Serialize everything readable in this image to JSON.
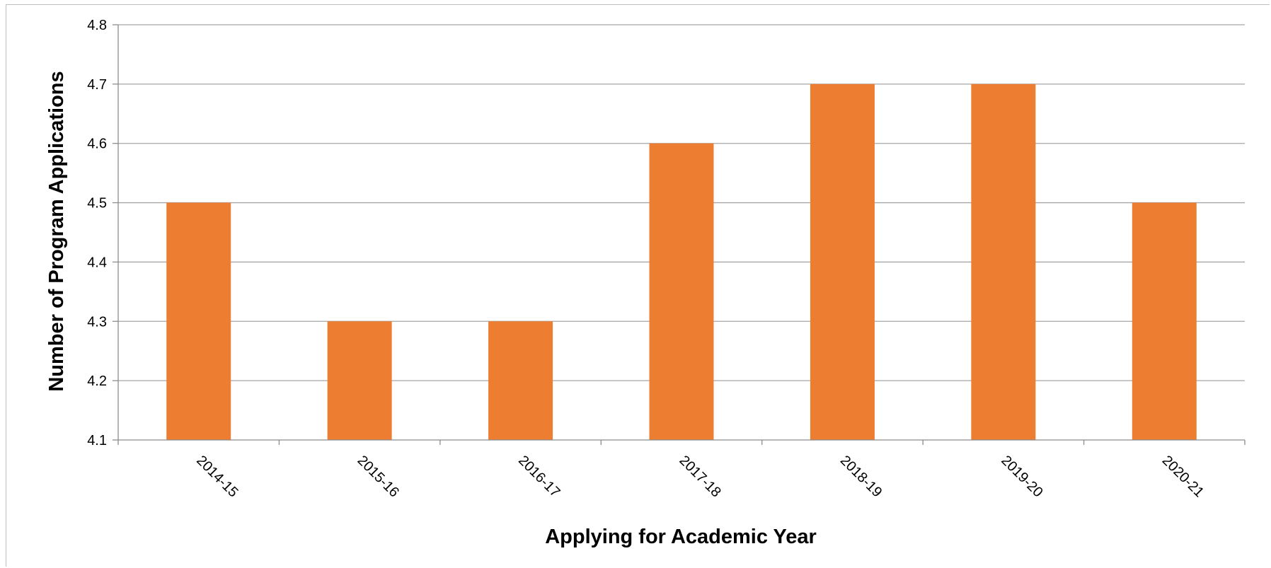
{
  "chart_data": {
    "type": "bar",
    "title": "",
    "xlabel": "Applying for Academic Year",
    "ylabel": "Number of Program Applications",
    "categories": [
      "2014-15",
      "2015-16",
      "2016-17",
      "2017-18",
      "2018-19",
      "2019-20",
      "2020-21"
    ],
    "values": [
      4.5,
      4.3,
      4.3,
      4.6,
      4.7,
      4.7,
      4.5
    ],
    "ylim": [
      4.1,
      4.8
    ],
    "yticks": [
      "4.1",
      "4.2",
      "4.3",
      "4.4",
      "4.5",
      "4.6",
      "4.7",
      "4.8"
    ],
    "grid": true,
    "legend": "none",
    "bar_color": "#ED7D31",
    "gridline_color": "#A6A6A6",
    "axis_color": "#8C8C8C"
  }
}
